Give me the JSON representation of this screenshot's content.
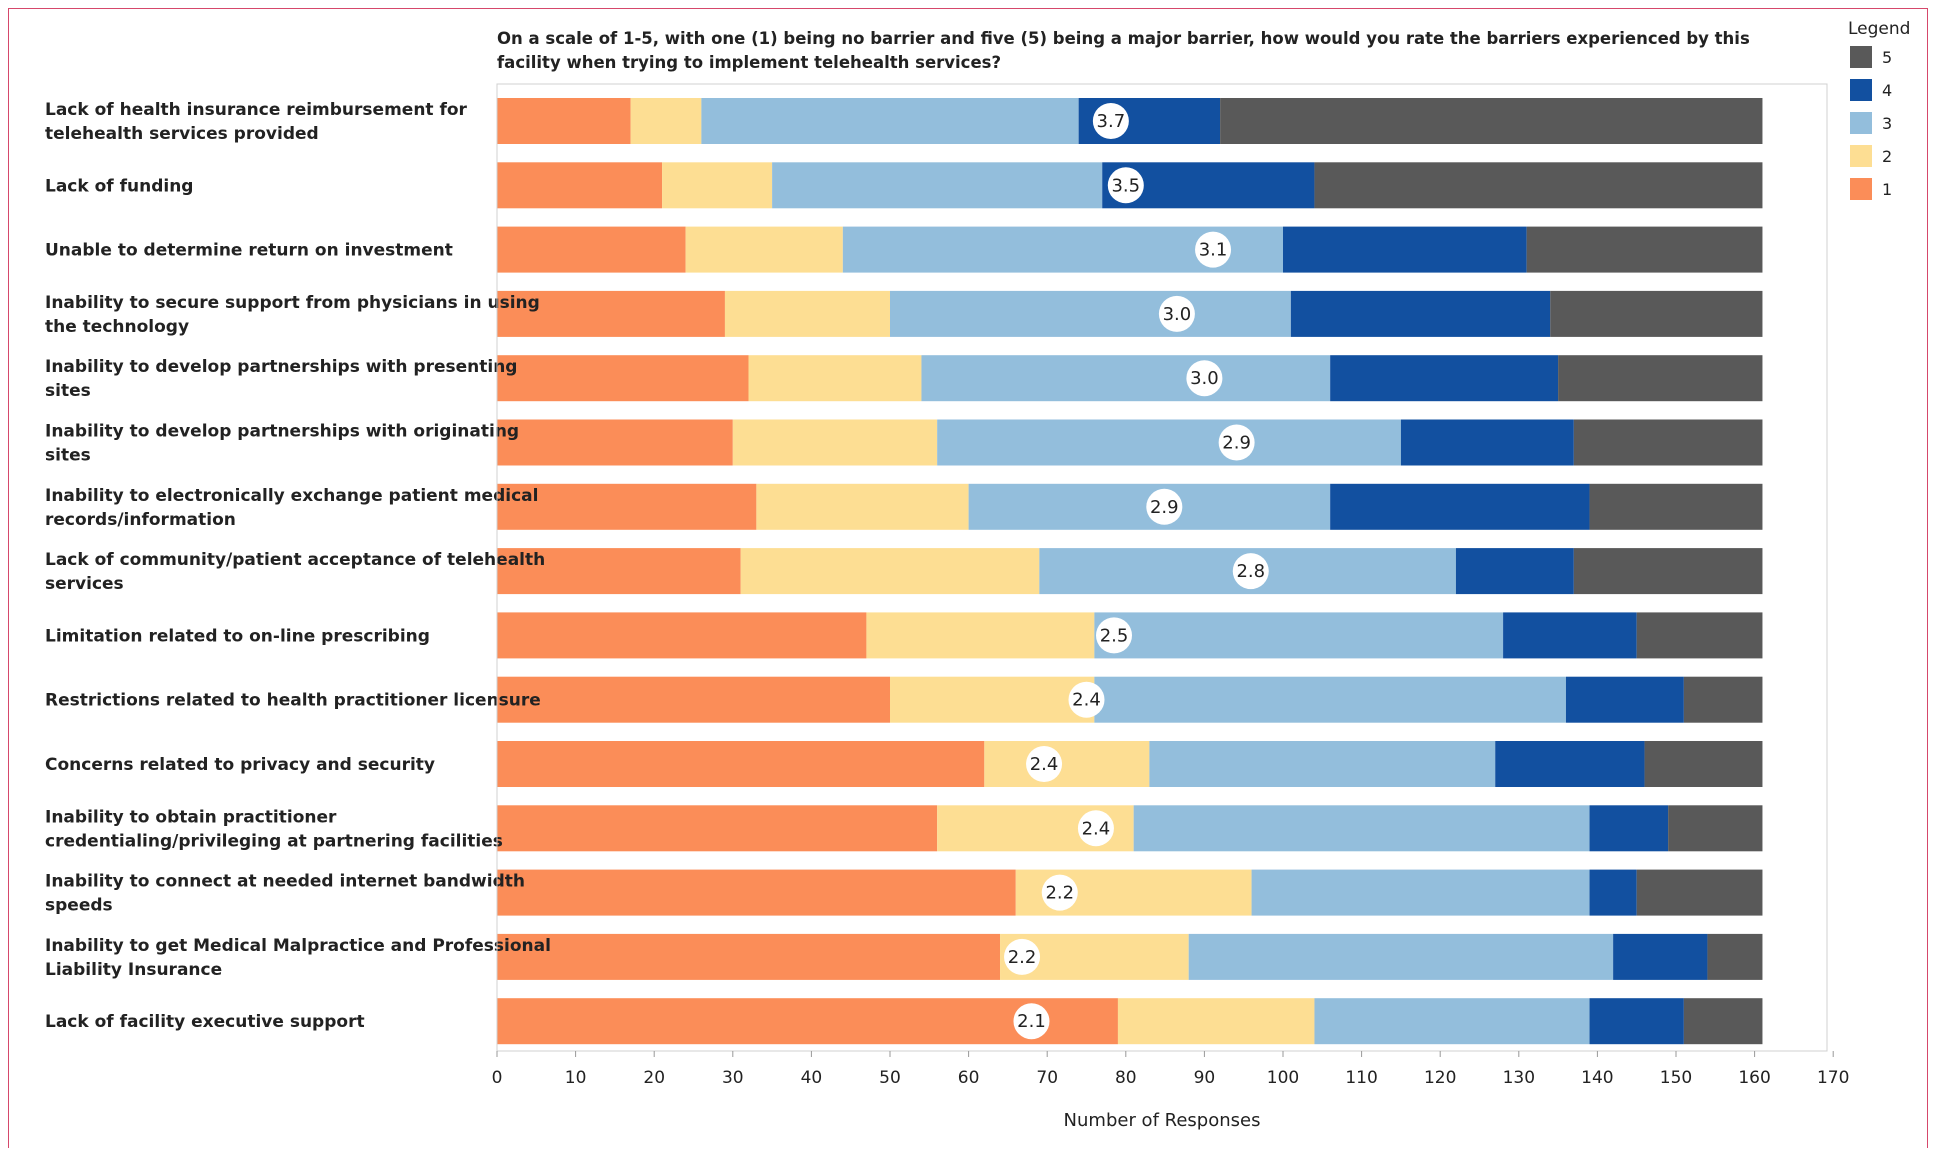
{
  "chart_data": {
    "type": "bar",
    "orientation": "horizontal",
    "stacked": true,
    "title": "On a scale of 1-5, with one (1) being no barrier and five (5) being a major barrier, how would you rate the barriers experienced by this facility when trying to implement telehealth services?",
    "xlabel": "Number of Responses",
    "ylabel": "",
    "xlim": [
      0,
      170
    ],
    "xticks": [
      0,
      10,
      20,
      30,
      40,
      50,
      60,
      70,
      80,
      90,
      100,
      110,
      120,
      130,
      140,
      150,
      160,
      170
    ],
    "legend": {
      "title": "Legend",
      "placement": "top-right"
    },
    "categories": [
      [
        "Lack of health insurance reimbursement for",
        "telehealth services provided"
      ],
      [
        "Lack of funding"
      ],
      [
        "Unable to determine return on investment"
      ],
      [
        "Inability to secure support from physicians in using",
        "the technology"
      ],
      [
        "Inability to develop partnerships with presenting",
        "sites"
      ],
      [
        "Inability to develop partnerships with originating",
        "sites"
      ],
      [
        "Inability to electronically exchange patient medical",
        "records/information"
      ],
      [
        "Lack of community/patient acceptance of telehealth",
        "services"
      ],
      [
        "Limitation related to on-line prescribing"
      ],
      [
        "Restrictions related to health practitioner licensure"
      ],
      [
        "Concerns related to privacy and security"
      ],
      [
        "Inability to obtain practitioner",
        "credentialing/privileging at partnering facilities"
      ],
      [
        "Inability to connect at needed internet bandwidth",
        "speeds"
      ],
      [
        "Inability to get Medical Malpractice and Professional",
        "Liability Insurance"
      ],
      [
        "Lack of facility executive support"
      ]
    ],
    "series": [
      {
        "name": "1",
        "color": "#fb8d58",
        "values": [
          17,
          21,
          24,
          29,
          32,
          30,
          33,
          31,
          47,
          50,
          62,
          56,
          66,
          64,
          79
        ]
      },
      {
        "name": "2",
        "color": "#fdde93",
        "values": [
          9,
          14,
          20,
          21,
          22,
          26,
          27,
          38,
          29,
          26,
          21,
          25,
          30,
          24,
          25
        ]
      },
      {
        "name": "3",
        "color": "#93bedc",
        "values": [
          48,
          42,
          56,
          51,
          52,
          59,
          46,
          53,
          52,
          60,
          44,
          58,
          43,
          54,
          35
        ]
      },
      {
        "name": "4",
        "color": "#1250a0",
        "values": [
          18,
          27,
          31,
          33,
          29,
          22,
          33,
          15,
          17,
          15,
          19,
          10,
          6,
          12,
          12
        ]
      },
      {
        "name": "5",
        "color": "#595959",
        "values": [
          69,
          57,
          30,
          27,
          26,
          24,
          22,
          24,
          16,
          10,
          15,
          12,
          16,
          7,
          10
        ]
      }
    ],
    "averages": [
      "3.7",
      "3.5",
      "3.1",
      "3.0",
      "3.0",
      "2.9",
      "2.9",
      "2.8",
      "2.5",
      "2.4",
      "2.4",
      "2.4",
      "2.2",
      "2.2",
      "2.1"
    ]
  }
}
